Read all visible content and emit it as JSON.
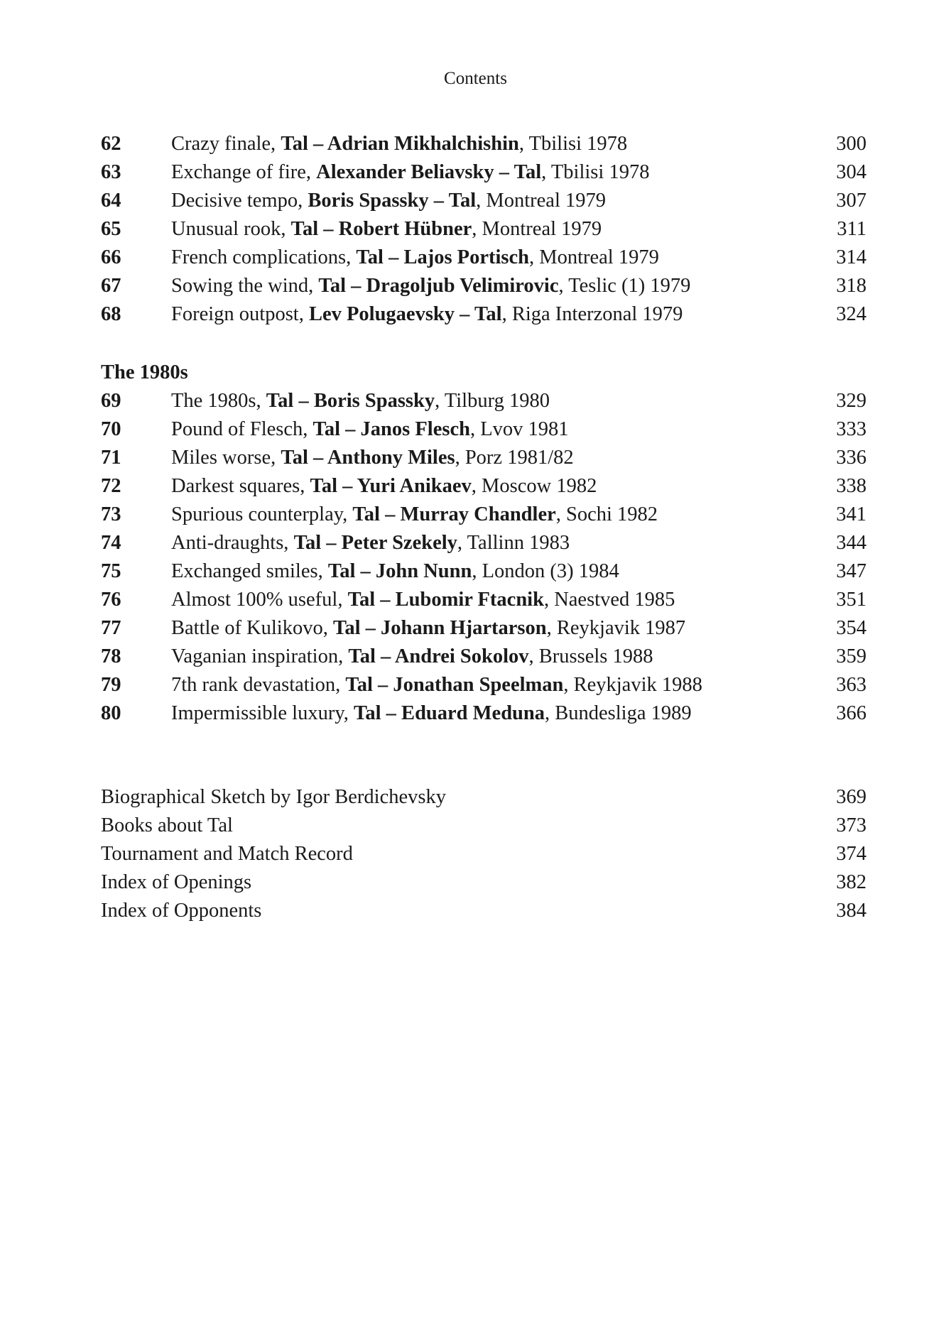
{
  "running_head": "Contents",
  "entries_1970s": [
    {
      "num": "62",
      "title": "Crazy finale, ",
      "players": "Tal – Adrian Mikhalchishin",
      "place": ", Tbilisi 1978",
      "page": "300"
    },
    {
      "num": "63",
      "title": "Exchange of fire, ",
      "players": "Alexander Beliavsky – Tal",
      "place": ", Tbilisi 1978",
      "page": "304"
    },
    {
      "num": "64",
      "title": "Decisive tempo, ",
      "players": "Boris Spassky – Tal",
      "place": ", Montreal 1979",
      "page": "307"
    },
    {
      "num": "65",
      "title": "Unusual rook, ",
      "players": "Tal – Robert Hübner",
      "place": ", Montreal 1979",
      "page": "311"
    },
    {
      "num": "66",
      "title": "French complications, ",
      "players": "Tal – Lajos Portisch",
      "place": ", Montreal 1979",
      "page": "314"
    },
    {
      "num": "67",
      "title": "Sowing the wind, ",
      "players": "Tal – Dragoljub Velimirovic",
      "place": ", Teslic (1) 1979",
      "page": "318"
    },
    {
      "num": "68",
      "title": "Foreign outpost, ",
      "players": "Lev Polugaevsky – Tal",
      "place": ", Riga Interzonal 1979",
      "page": "324"
    }
  ],
  "section_1980s": "The 1980s",
  "entries_1980s": [
    {
      "num": "69",
      "title": "The 1980s, ",
      "players": "Tal – Boris Spassky",
      "place": ", Tilburg 1980",
      "page": "329"
    },
    {
      "num": "70",
      "title": "Pound of Flesch, ",
      "players": "Tal – Janos Flesch",
      "place": ", Lvov 1981",
      "page": "333"
    },
    {
      "num": "71",
      "title": "Miles worse, ",
      "players": "Tal – Anthony Miles",
      "place": ", Porz 1981/82",
      "page": "336"
    },
    {
      "num": "72",
      "title": "Darkest squares, ",
      "players": "Tal – Yuri Anikaev",
      "place": ", Moscow 1982",
      "page": "338"
    },
    {
      "num": "73",
      "title": "Spurious counterplay, ",
      "players": "Tal – Murray Chandler",
      "place": ", Sochi 1982",
      "page": "341"
    },
    {
      "num": "74",
      "title": "Anti-draughts, ",
      "players": "Tal – Peter Szekely",
      "place": ", Tallinn 1983",
      "page": "344"
    },
    {
      "num": "75",
      "title": "Exchanged smiles, ",
      "players": "Tal – John Nunn",
      "place": ", London (3) 1984",
      "page": "347"
    },
    {
      "num": "76",
      "title": "Almost 100% useful, ",
      "players": "Tal – Lubomir Ftacnik",
      "place": ", Naestved 1985",
      "page": "351"
    },
    {
      "num": "77",
      "title": "Battle of Kulikovo, ",
      "players": "Tal – Johann Hjartarson",
      "place": ", Reykjavik 1987",
      "page": "354"
    },
    {
      "num": "78",
      "title": "Vaganian inspiration, ",
      "players": "Tal – Andrei Sokolov",
      "place": ", Brussels 1988",
      "page": "359"
    },
    {
      "num": "79",
      "title": "7th rank devastation, ",
      "players": "Tal – Jonathan Speelman",
      "place": ", Reykjavik 1988",
      "page": "363"
    },
    {
      "num": "80",
      "title": "Impermissible luxury, ",
      "players": "Tal – Eduard Meduna",
      "place": ", Bundesliga 1989",
      "page": "366"
    }
  ],
  "back_matter": [
    {
      "title": "Biographical Sketch by Igor Berdichevsky",
      "page": "369"
    },
    {
      "title": "Books about Tal",
      "page": "373"
    },
    {
      "title": "Tournament and Match Record",
      "page": "374"
    },
    {
      "title": "Index of Openings",
      "page": "382"
    },
    {
      "title": "Index of Opponents",
      "page": "384"
    }
  ]
}
